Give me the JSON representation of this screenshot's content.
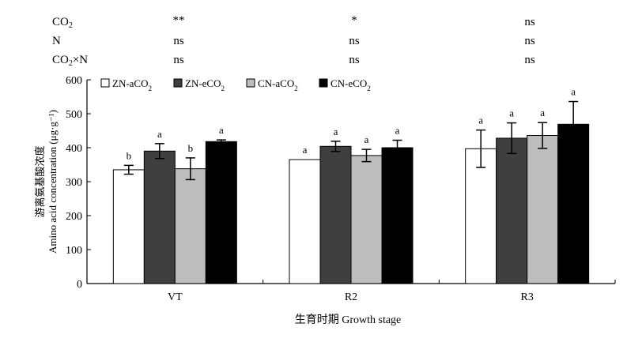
{
  "significance_table": {
    "rows": [
      {
        "label": "CO₂",
        "values": [
          "**",
          "*",
          "ns"
        ]
      },
      {
        "label": "N",
        "values": [
          "ns",
          "ns",
          "ns"
        ]
      },
      {
        "label": "CO₂×N",
        "values": [
          "ns",
          "ns",
          "ns"
        ]
      }
    ]
  },
  "chart_data": {
    "type": "bar",
    "xlabel": "生育时期 Growth stage",
    "ylabel_cn": "游离氨基酸浓度",
    "ylabel_en": "Amino acid concentration (μg·g⁻¹)",
    "ylim": [
      0,
      600
    ],
    "yticks": [
      0,
      100,
      200,
      300,
      400,
      500,
      600
    ],
    "categories": [
      "VT",
      "R2",
      "R3"
    ],
    "legend_placement": "top-left",
    "series": [
      {
        "name": "ZN-aCO₂",
        "color": "#ffffff",
        "values": [
          335,
          365,
          397
        ],
        "errors": [
          13,
          0,
          55
        ],
        "letters": [
          "b",
          "a",
          "a"
        ]
      },
      {
        "name": "ZN-eCO₂",
        "color": "#3f3f3f",
        "values": [
          390,
          404,
          428
        ],
        "errors": [
          22,
          15,
          45
        ],
        "letters": [
          "a",
          "a",
          "a"
        ]
      },
      {
        "name": "CN-aCO₂",
        "color": "#bdbdbd",
        "values": [
          338,
          377,
          436
        ],
        "errors": [
          32,
          18,
          38
        ],
        "letters": [
          "b",
          "a",
          "a"
        ]
      },
      {
        "name": "CN-eCO₂",
        "color": "#000000",
        "values": [
          418,
          400,
          469
        ],
        "errors": [
          5,
          22,
          67
        ],
        "letters": [
          "a",
          "a",
          "a"
        ]
      }
    ]
  }
}
